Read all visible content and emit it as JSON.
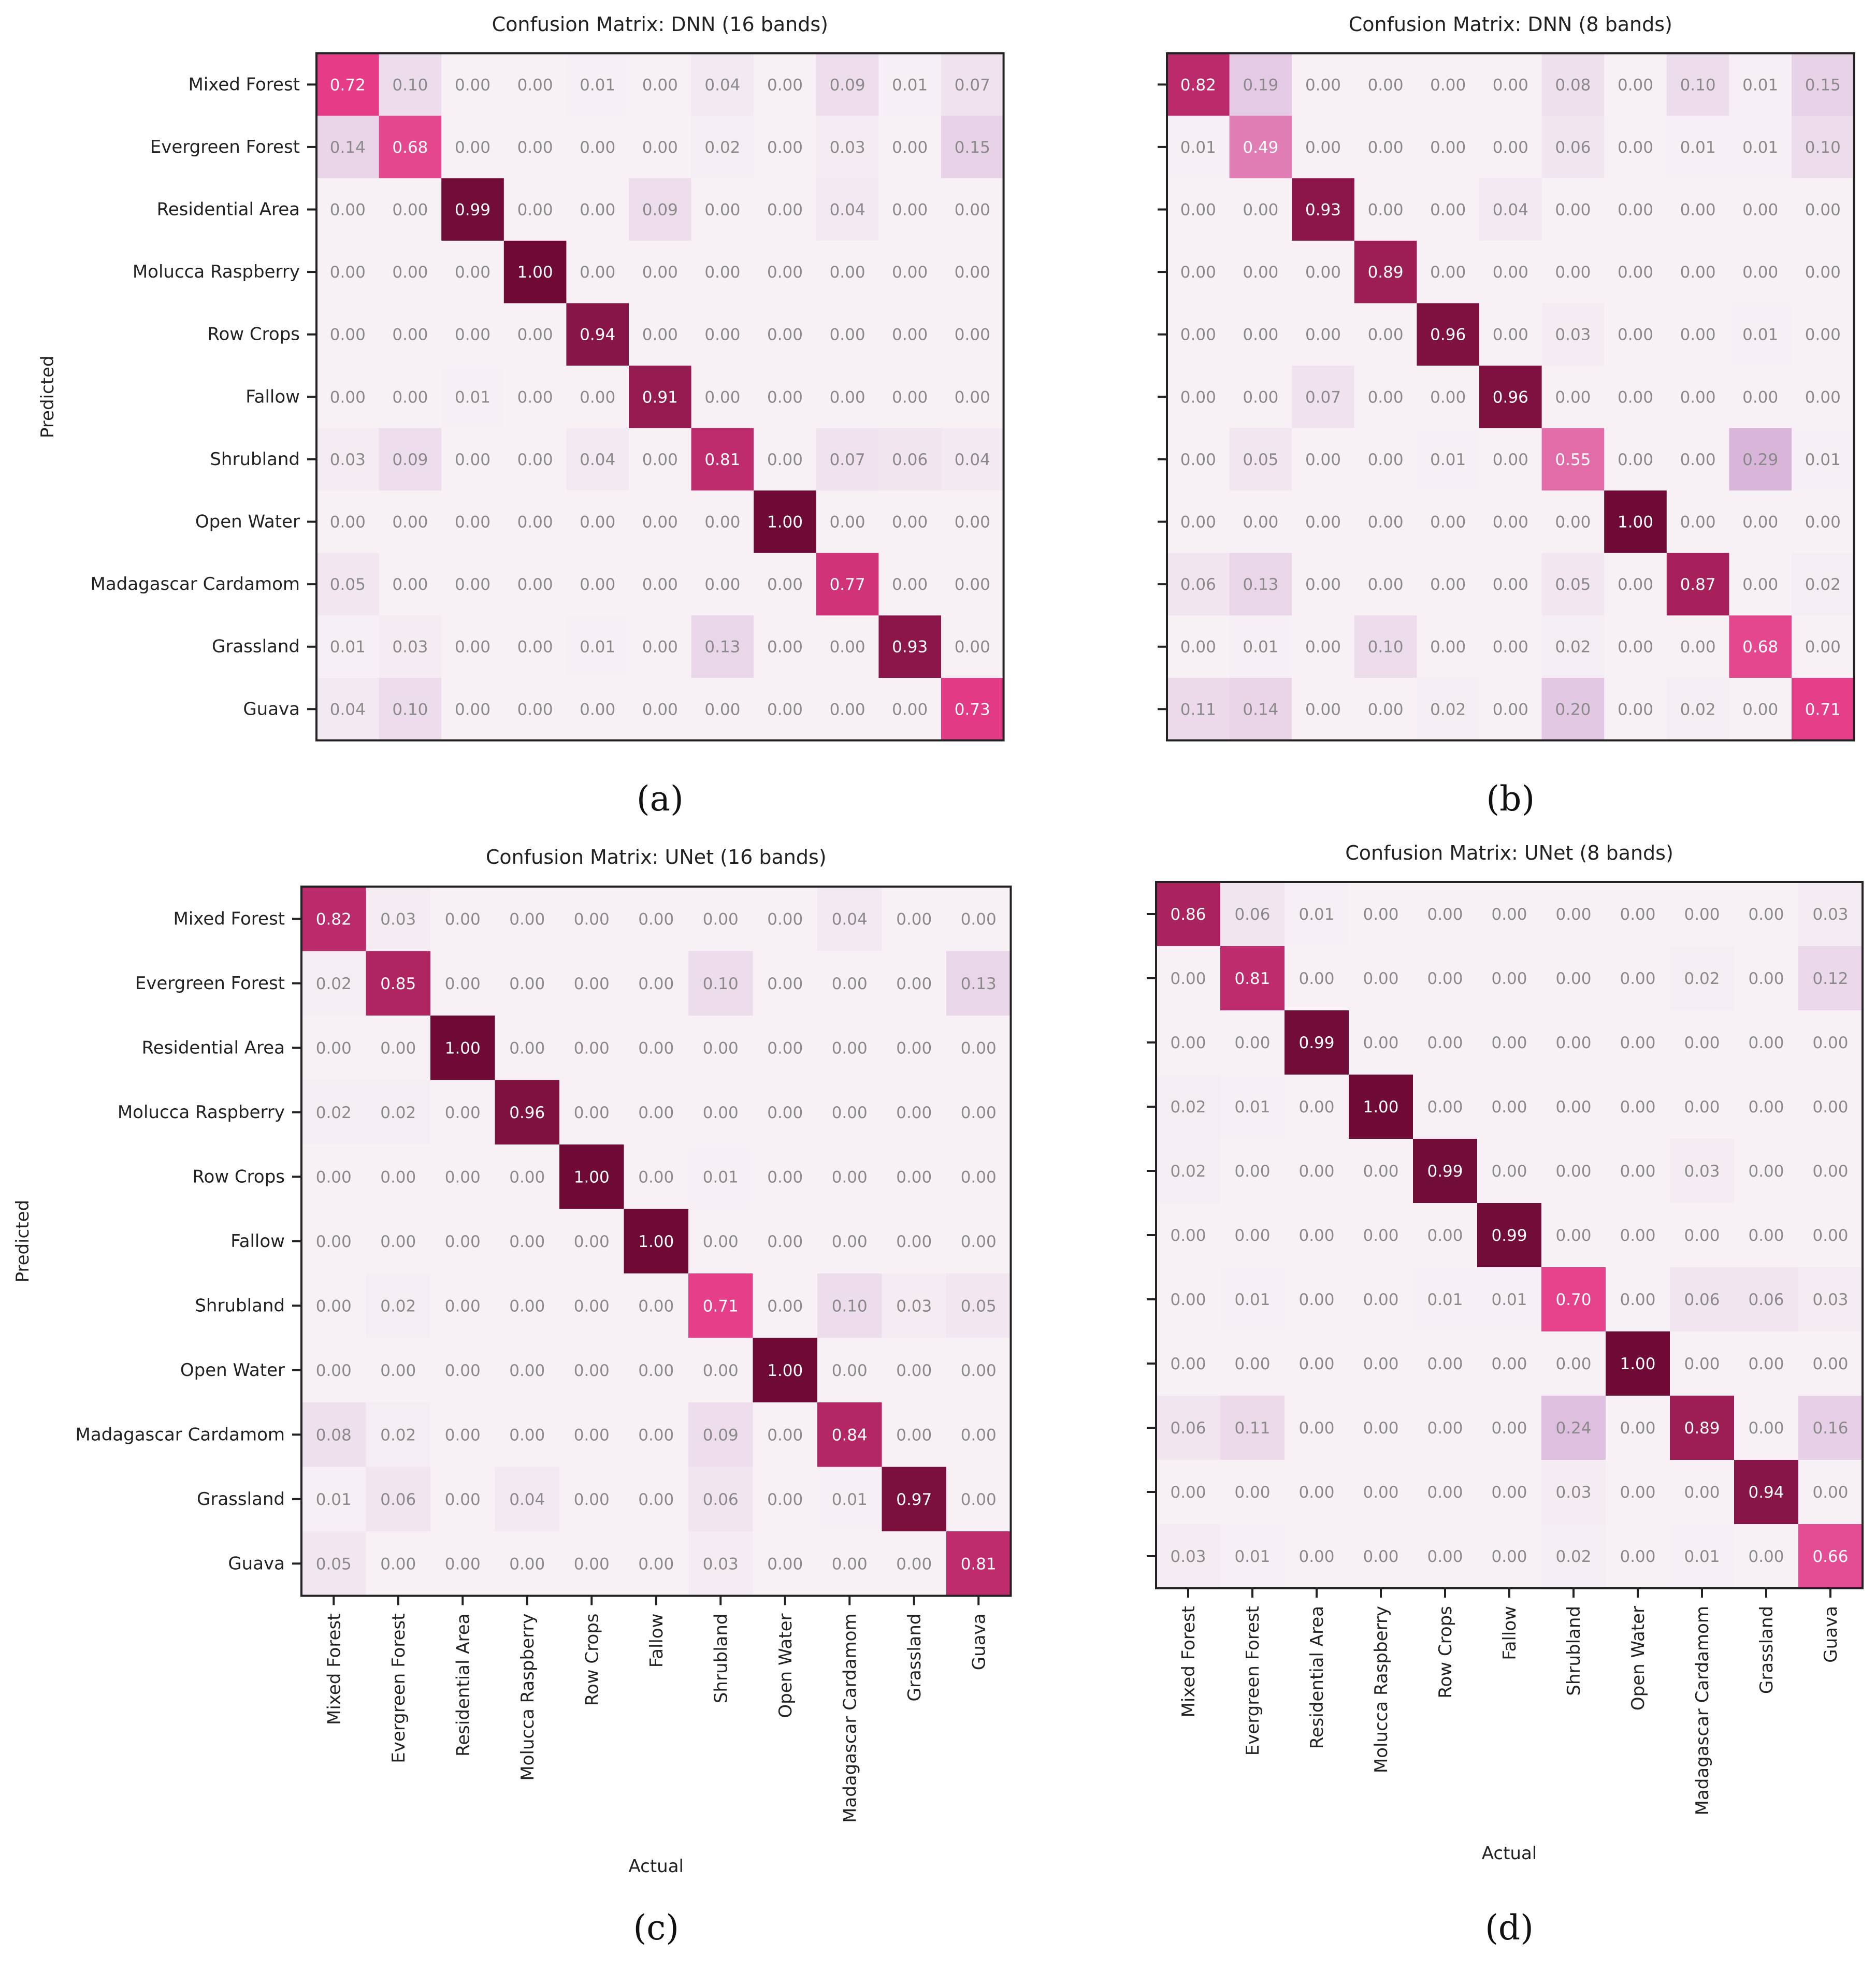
{
  "colors": {
    "low": "#f7f1f6",
    "mid_light": "#d9b3d9",
    "mid": "#e63c87",
    "high": "#6e0a35",
    "border": "#222222",
    "axis_text": "#222222"
  },
  "chart_data": [
    {
      "type": "heatmap",
      "title": "Confusion Matrix: DNN (16 bands)",
      "panel_label": "(a)",
      "xlabel": "",
      "ylabel": "Predicted",
      "x_ticks_shown": false,
      "y_categories": [
        "Mixed Forest",
        "Evergreen Forest",
        "Residential Area",
        "Molucca Raspberry",
        "Row Crops",
        "Fallow",
        "Shrubland",
        "Open Water",
        "Madagascar Cardamom",
        "Grassland",
        "Guava"
      ],
      "x_categories": [
        "Mixed Forest",
        "Evergreen Forest",
        "Residential Area",
        "Molucca Raspberry",
        "Row Crops",
        "Fallow",
        "Shrubland",
        "Open Water",
        "Madagascar Cardamom",
        "Grassland",
        "Guava"
      ],
      "values": [
        [
          0.72,
          0.1,
          0.0,
          0.0,
          0.01,
          0.0,
          0.04,
          0.0,
          0.09,
          0.01,
          0.07
        ],
        [
          0.14,
          0.68,
          0.0,
          0.0,
          0.0,
          0.0,
          0.02,
          0.0,
          0.03,
          0.0,
          0.15
        ],
        [
          0.0,
          0.0,
          0.99,
          0.0,
          0.0,
          0.09,
          0.0,
          0.0,
          0.04,
          0.0,
          0.0
        ],
        [
          0.0,
          0.0,
          0.0,
          1.0,
          0.0,
          0.0,
          0.0,
          0.0,
          0.0,
          0.0,
          0.0
        ],
        [
          0.0,
          0.0,
          0.0,
          0.0,
          0.94,
          0.0,
          0.0,
          0.0,
          0.0,
          0.0,
          0.0
        ],
        [
          0.0,
          0.0,
          0.01,
          0.0,
          0.0,
          0.91,
          0.0,
          0.0,
          0.0,
          0.0,
          0.0
        ],
        [
          0.03,
          0.09,
          0.0,
          0.0,
          0.04,
          0.0,
          0.81,
          0.0,
          0.07,
          0.06,
          0.04
        ],
        [
          0.0,
          0.0,
          0.0,
          0.0,
          0.0,
          0.0,
          0.0,
          1.0,
          0.0,
          0.0,
          0.0
        ],
        [
          0.05,
          0.0,
          0.0,
          0.0,
          0.0,
          0.0,
          0.0,
          0.0,
          0.77,
          0.0,
          0.0
        ],
        [
          0.01,
          0.03,
          0.0,
          0.0,
          0.01,
          0.0,
          0.13,
          0.0,
          0.0,
          0.93,
          0.0
        ],
        [
          0.04,
          0.1,
          0.0,
          0.0,
          0.0,
          0.0,
          0.0,
          0.0,
          0.0,
          0.0,
          0.73
        ]
      ],
      "vmin": 0,
      "vmax": 1,
      "grid": false,
      "legend": "none"
    },
    {
      "type": "heatmap",
      "title": "Confusion Matrix: DNN (8 bands)",
      "panel_label": "(b)",
      "xlabel": "",
      "ylabel": "",
      "x_ticks_shown": false,
      "y_categories": [
        "Mixed Forest",
        "Evergreen Forest",
        "Residential Area",
        "Molucca Raspberry",
        "Row Crops",
        "Fallow",
        "Shrubland",
        "Open Water",
        "Madagascar Cardamom",
        "Grassland",
        "Guava"
      ],
      "y_tick_labels_shown": false,
      "x_categories": [
        "Mixed Forest",
        "Evergreen Forest",
        "Residential Area",
        "Molucca Raspberry",
        "Row Crops",
        "Fallow",
        "Shrubland",
        "Open Water",
        "Madagascar Cardamom",
        "Grassland",
        "Guava"
      ],
      "values": [
        [
          0.82,
          0.19,
          0.0,
          0.0,
          0.0,
          0.0,
          0.08,
          0.0,
          0.1,
          0.01,
          0.15
        ],
        [
          0.01,
          0.49,
          0.0,
          0.0,
          0.0,
          0.0,
          0.06,
          0.0,
          0.01,
          0.01,
          0.1
        ],
        [
          0.0,
          0.0,
          0.93,
          0.0,
          0.0,
          0.04,
          0.0,
          0.0,
          0.0,
          0.0,
          0.0
        ],
        [
          0.0,
          0.0,
          0.0,
          0.89,
          0.0,
          0.0,
          0.0,
          0.0,
          0.0,
          0.0,
          0.0
        ],
        [
          0.0,
          0.0,
          0.0,
          0.0,
          0.96,
          0.0,
          0.03,
          0.0,
          0.0,
          0.01,
          0.0
        ],
        [
          0.0,
          0.0,
          0.07,
          0.0,
          0.0,
          0.96,
          0.0,
          0.0,
          0.0,
          0.0,
          0.0
        ],
        [
          0.0,
          0.05,
          0.0,
          0.0,
          0.01,
          0.0,
          0.55,
          0.0,
          0.0,
          0.29,
          0.01
        ],
        [
          0.0,
          0.0,
          0.0,
          0.0,
          0.0,
          0.0,
          0.0,
          1.0,
          0.0,
          0.0,
          0.0
        ],
        [
          0.06,
          0.13,
          0.0,
          0.0,
          0.0,
          0.0,
          0.05,
          0.0,
          0.87,
          0.0,
          0.02
        ],
        [
          0.0,
          0.01,
          0.0,
          0.1,
          0.0,
          0.0,
          0.02,
          0.0,
          0.0,
          0.68,
          0.0
        ],
        [
          0.11,
          0.14,
          0.0,
          0.0,
          0.02,
          0.0,
          0.2,
          0.0,
          0.02,
          0.0,
          0.71
        ]
      ],
      "vmin": 0,
      "vmax": 1,
      "grid": false,
      "legend": "none"
    },
    {
      "type": "heatmap",
      "title": "Confusion Matrix: UNet (16 bands)",
      "panel_label": "(c)",
      "xlabel": "Actual",
      "ylabel": "Predicted",
      "x_ticks_shown": true,
      "y_categories": [
        "Mixed Forest",
        "Evergreen Forest",
        "Residential Area",
        "Molucca Raspberry",
        "Row Crops",
        "Fallow",
        "Shrubland",
        "Open Water",
        "Madagascar Cardamom",
        "Grassland",
        "Guava"
      ],
      "x_categories": [
        "Mixed Forest",
        "Evergreen Forest",
        "Residential Area",
        "Molucca Raspberry",
        "Row Crops",
        "Fallow",
        "Shrubland",
        "Open Water",
        "Madagascar Cardamom",
        "Grassland",
        "Guava"
      ],
      "values": [
        [
          0.82,
          0.03,
          0.0,
          0.0,
          0.0,
          0.0,
          0.0,
          0.0,
          0.04,
          0.0,
          0.0
        ],
        [
          0.02,
          0.85,
          0.0,
          0.0,
          0.0,
          0.0,
          0.1,
          0.0,
          0.0,
          0.0,
          0.13
        ],
        [
          0.0,
          0.0,
          1.0,
          0.0,
          0.0,
          0.0,
          0.0,
          0.0,
          0.0,
          0.0,
          0.0
        ],
        [
          0.02,
          0.02,
          0.0,
          0.96,
          0.0,
          0.0,
          0.0,
          0.0,
          0.0,
          0.0,
          0.0
        ],
        [
          0.0,
          0.0,
          0.0,
          0.0,
          1.0,
          0.0,
          0.01,
          0.0,
          0.0,
          0.0,
          0.0
        ],
        [
          0.0,
          0.0,
          0.0,
          0.0,
          0.0,
          1.0,
          0.0,
          0.0,
          0.0,
          0.0,
          0.0
        ],
        [
          0.0,
          0.02,
          0.0,
          0.0,
          0.0,
          0.0,
          0.71,
          0.0,
          0.1,
          0.03,
          0.05
        ],
        [
          0.0,
          0.0,
          0.0,
          0.0,
          0.0,
          0.0,
          0.0,
          1.0,
          0.0,
          0.0,
          0.0
        ],
        [
          0.08,
          0.02,
          0.0,
          0.0,
          0.0,
          0.0,
          0.09,
          0.0,
          0.84,
          0.0,
          0.0
        ],
        [
          0.01,
          0.06,
          0.0,
          0.04,
          0.0,
          0.0,
          0.06,
          0.0,
          0.01,
          0.97,
          0.0
        ],
        [
          0.05,
          0.0,
          0.0,
          0.0,
          0.0,
          0.0,
          0.03,
          0.0,
          0.0,
          0.0,
          0.81
        ]
      ],
      "vmin": 0,
      "vmax": 1,
      "grid": false,
      "legend": "none"
    },
    {
      "type": "heatmap",
      "title": "Confusion Matrix: UNet (8 bands)",
      "panel_label": "(d)",
      "xlabel": "Actual",
      "ylabel": "",
      "x_ticks_shown": true,
      "y_categories": [
        "Mixed Forest",
        "Evergreen Forest",
        "Residential Area",
        "Molucca Raspberry",
        "Row Crops",
        "Fallow",
        "Shrubland",
        "Open Water",
        "Madagascar Cardamom",
        "Grassland",
        "Guava"
      ],
      "y_tick_labels_shown": false,
      "x_categories": [
        "Mixed Forest",
        "Evergreen Forest",
        "Residential Area",
        "Molucca Raspberry",
        "Row Crops",
        "Fallow",
        "Shrubland",
        "Open Water",
        "Madagascar Cardamom",
        "Grassland",
        "Guava"
      ],
      "values": [
        [
          0.86,
          0.06,
          0.01,
          0.0,
          0.0,
          0.0,
          0.0,
          0.0,
          0.0,
          0.0,
          0.03
        ],
        [
          0.0,
          0.81,
          0.0,
          0.0,
          0.0,
          0.0,
          0.0,
          0.0,
          0.02,
          0.0,
          0.12
        ],
        [
          0.0,
          0.0,
          0.99,
          0.0,
          0.0,
          0.0,
          0.0,
          0.0,
          0.0,
          0.0,
          0.0
        ],
        [
          0.02,
          0.01,
          0.0,
          1.0,
          0.0,
          0.0,
          0.0,
          0.0,
          0.0,
          0.0,
          0.0
        ],
        [
          0.02,
          0.0,
          0.0,
          0.0,
          0.99,
          0.0,
          0.0,
          0.0,
          0.03,
          0.0,
          0.0
        ],
        [
          0.0,
          0.0,
          0.0,
          0.0,
          0.0,
          0.99,
          0.0,
          0.0,
          0.0,
          0.0,
          0.0
        ],
        [
          0.0,
          0.01,
          0.0,
          0.0,
          0.01,
          0.01,
          0.7,
          0.0,
          0.06,
          0.06,
          0.03
        ],
        [
          0.0,
          0.0,
          0.0,
          0.0,
          0.0,
          0.0,
          0.0,
          1.0,
          0.0,
          0.0,
          0.0
        ],
        [
          0.06,
          0.11,
          0.0,
          0.0,
          0.0,
          0.0,
          0.24,
          0.0,
          0.89,
          0.0,
          0.16
        ],
        [
          0.0,
          0.0,
          0.0,
          0.0,
          0.0,
          0.0,
          0.03,
          0.0,
          0.0,
          0.94,
          0.0
        ],
        [
          0.03,
          0.01,
          0.0,
          0.0,
          0.0,
          0.0,
          0.02,
          0.0,
          0.01,
          0.0,
          0.66
        ]
      ],
      "vmin": 0,
      "vmax": 1,
      "grid": false,
      "legend": "none"
    }
  ]
}
